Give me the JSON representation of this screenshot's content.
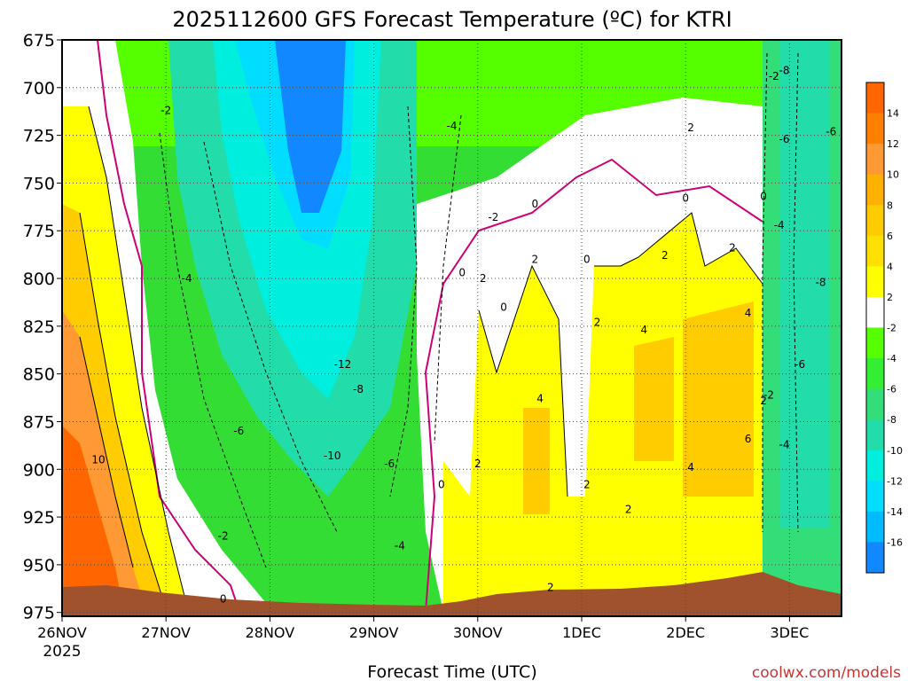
{
  "chart_data": {
    "type": "heatmap",
    "title": "2025112600 GFS Forecast Temperature (ºC) for KTRI",
    "xlabel": "Forecast Time (UTC)",
    "ylabel": "",
    "attribution": "coolwx.com/models",
    "x_ticks": [
      "26NOV",
      "27NOV",
      "28NOV",
      "29NOV",
      "30NOV",
      "1DEC",
      "2DEC",
      "3DEC"
    ],
    "x_year": "2025",
    "x_range_days": [
      0,
      7.5
    ],
    "y_ticks": [
      675,
      700,
      725,
      750,
      775,
      800,
      825,
      850,
      875,
      900,
      925,
      950,
      975
    ],
    "y_range": [
      675,
      977
    ],
    "colorbar": {
      "labels": [
        14,
        12,
        10,
        8,
        6,
        4,
        2,
        -2,
        -4,
        -6,
        -8,
        -10,
        -12,
        -14,
        -16
      ],
      "colors": [
        "#ff6600",
        "#ff8000",
        "#ff9933",
        "#ffb000",
        "#ffcc00",
        "#ffe000",
        "#ffff00",
        "#ffffff",
        "#55ff00",
        "#33ee33",
        "#33dd77",
        "#22ddaa",
        "#00eedd",
        "#00ddff",
        "#00bbff",
        "#1188ff"
      ]
    },
    "contour_labels": [
      {
        "text": "-2",
        "x": 1.0,
        "y": 712
      },
      {
        "text": "-4",
        "x": 1.2,
        "y": 800
      },
      {
        "text": "-6",
        "x": 1.7,
        "y": 880
      },
      {
        "text": "-2",
        "x": 1.55,
        "y": 935
      },
      {
        "text": "0",
        "x": 1.55,
        "y": 968
      },
      {
        "text": "-12",
        "x": 2.7,
        "y": 845
      },
      {
        "text": "-8",
        "x": 2.85,
        "y": 858
      },
      {
        "text": "-10",
        "x": 2.6,
        "y": 893
      },
      {
        "text": "-6",
        "x": 3.15,
        "y": 897
      },
      {
        "text": "-4",
        "x": 3.25,
        "y": 940
      },
      {
        "text": "-4",
        "x": 3.75,
        "y": 720
      },
      {
        "text": "-2",
        "x": 4.15,
        "y": 768
      },
      {
        "text": "0",
        "x": 4.55,
        "y": 761
      },
      {
        "text": "0",
        "x": 3.85,
        "y": 797
      },
      {
        "text": "2",
        "x": 4.05,
        "y": 800
      },
      {
        "text": "0",
        "x": 4.25,
        "y": 815
      },
      {
        "text": "2",
        "x": 4.55,
        "y": 790
      },
      {
        "text": "0",
        "x": 3.65,
        "y": 908
      },
      {
        "text": "2",
        "x": 4.0,
        "y": 897
      },
      {
        "text": "4",
        "x": 4.6,
        "y": 863
      },
      {
        "text": "2",
        "x": 4.7,
        "y": 962
      },
      {
        "text": "0",
        "x": 5.05,
        "y": 790
      },
      {
        "text": "2",
        "x": 5.15,
        "y": 823
      },
      {
        "text": "2",
        "x": 5.05,
        "y": 908
      },
      {
        "text": "2",
        "x": 5.45,
        "y": 921
      },
      {
        "text": "4",
        "x": 5.6,
        "y": 827
      },
      {
        "text": "2",
        "x": 6.05,
        "y": 721
      },
      {
        "text": "0",
        "x": 6.0,
        "y": 758
      },
      {
        "text": "2",
        "x": 5.8,
        "y": 788
      },
      {
        "text": "2",
        "x": 6.45,
        "y": 784
      },
      {
        "text": "4",
        "x": 6.05,
        "y": 899
      },
      {
        "text": "4",
        "x": 6.6,
        "y": 818
      },
      {
        "text": "6",
        "x": 6.6,
        "y": 884
      },
      {
        "text": "2",
        "x": 6.75,
        "y": 864
      },
      {
        "text": "-2",
        "x": 6.8,
        "y": 861
      },
      {
        "text": "-2",
        "x": 6.85,
        "y": 694
      },
      {
        "text": "-8",
        "x": 6.95,
        "y": 691
      },
      {
        "text": "0",
        "x": 6.75,
        "y": 757
      },
      {
        "text": "-4",
        "x": 6.9,
        "y": 772
      },
      {
        "text": "-6",
        "x": 6.95,
        "y": 727
      },
      {
        "text": "-6",
        "x": 7.4,
        "y": 723
      },
      {
        "text": "-8",
        "x": 7.3,
        "y": 802
      },
      {
        "text": "-6",
        "x": 7.1,
        "y": 845
      },
      {
        "text": "-4",
        "x": 6.95,
        "y": 887
      },
      {
        "text": "10",
        "x": 0.35,
        "y": 895
      }
    ]
  }
}
